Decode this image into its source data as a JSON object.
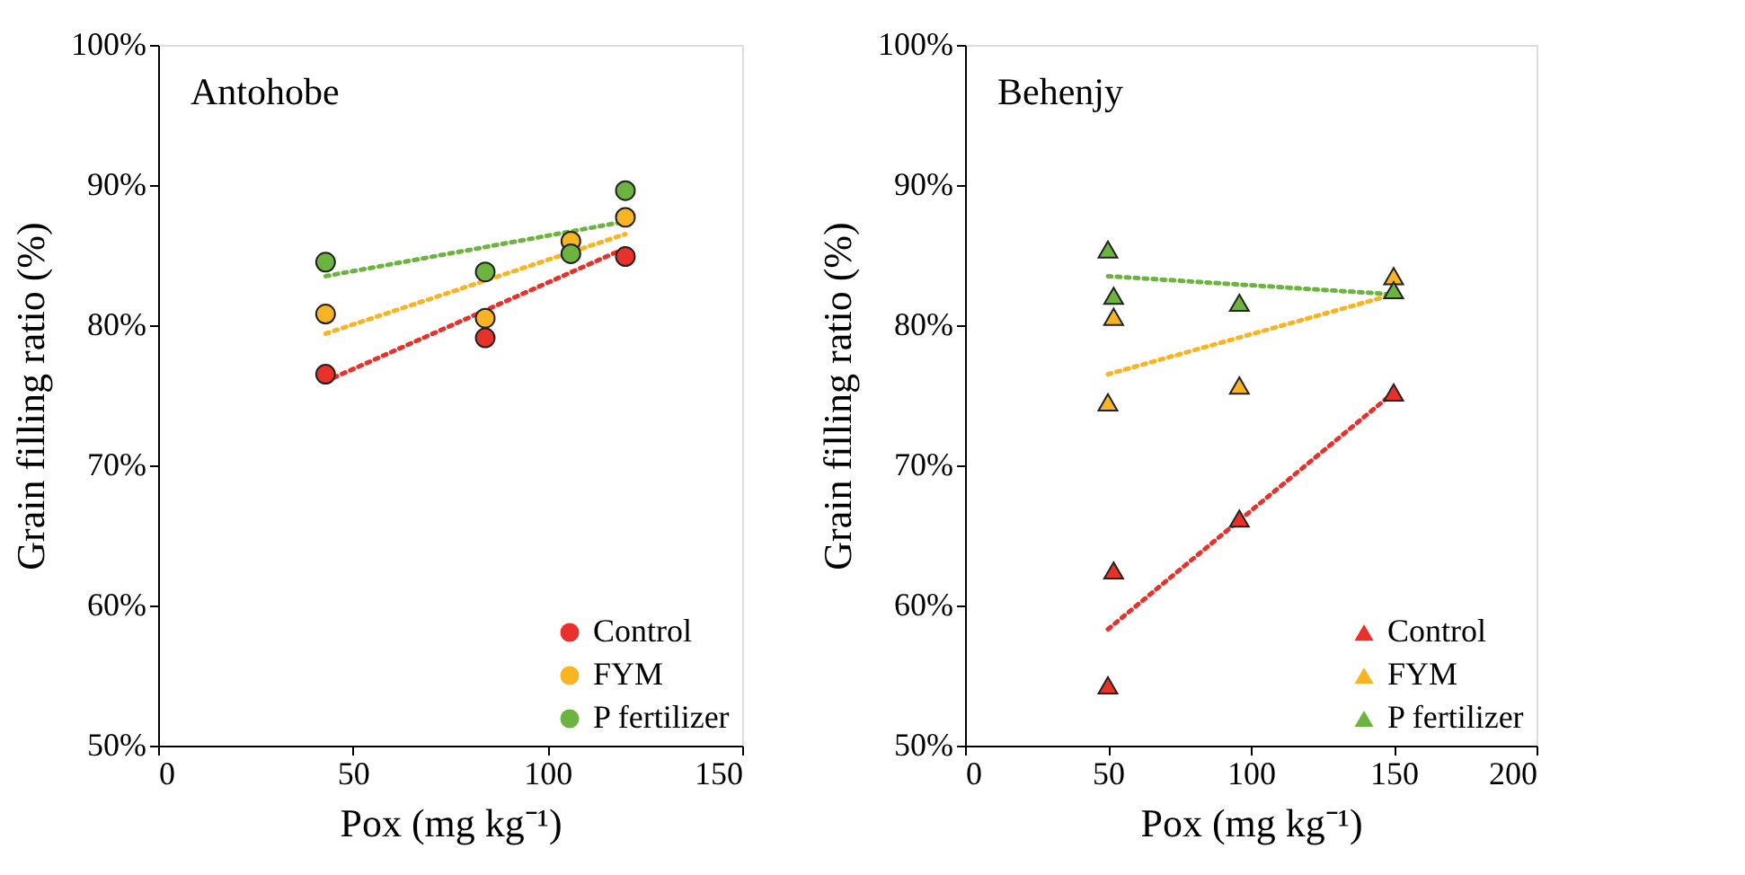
{
  "chart_data": [
    {
      "type": "scatter",
      "title": "Antohobe",
      "xlabel": "Pox (mg kg⁻¹)",
      "ylabel": "Grain filling ratio (%)",
      "xlim": [
        0,
        150
      ],
      "xticks": [
        0,
        50,
        100,
        150
      ],
      "ylim": [
        50,
        100
      ],
      "yticks": [
        {
          "value": 50,
          "label": "50%"
        },
        {
          "value": 60,
          "label": "60%"
        },
        {
          "value": 70,
          "label": "70%"
        },
        {
          "value": 80,
          "label": "80%"
        },
        {
          "value": 90,
          "label": "90%"
        },
        {
          "value": 100,
          "label": "100%"
        }
      ],
      "grid": false,
      "legend": "bottom right",
      "marker": "circle",
      "series": [
        {
          "name": "Control",
          "color": "#e8312a",
          "x": [
            43,
            84,
            106,
            120
          ],
          "values": [
            76.5,
            79.1,
            null,
            84.9
          ]
        },
        {
          "name": "FYM",
          "color": "#f9b423",
          "x": [
            43,
            84,
            106,
            120
          ],
          "values": [
            80.8,
            80.5,
            86.0,
            87.7
          ]
        },
        {
          "name": "P fertilizer",
          "color": "#6db33f",
          "x": [
            43,
            84,
            106,
            120
          ],
          "values": [
            84.5,
            83.8,
            85.1,
            89.6
          ]
        },
        {
          "type": "line",
          "color": "#e8312a",
          "x": [
            43,
            120
          ],
          "values": [
            76.0,
            85.5
          ],
          "line_style": "dotted",
          "marker": "none"
        },
        {
          "type": "line",
          "color": "#f9b423",
          "x": [
            43,
            120
          ],
          "values": [
            79.4,
            86.5
          ],
          "line_style": "dotted",
          "marker": "none"
        },
        {
          "type": "line",
          "color": "#6db33f",
          "x": [
            43,
            120
          ],
          "values": [
            83.5,
            87.4
          ],
          "line_style": "dotted",
          "marker": "none"
        }
      ]
    },
    {
      "type": "scatter",
      "title": "Behenjy",
      "xlabel": "Pox (mg kg⁻¹)",
      "ylabel": "Grain filling ratio (%)",
      "xlim": [
        0,
        200
      ],
      "xticks": [
        0,
        50,
        100,
        150,
        200
      ],
      "ylim": [
        50,
        100
      ],
      "yticks": [
        {
          "value": 50,
          "label": "50%"
        },
        {
          "value": 60,
          "label": "60%"
        },
        {
          "value": 70,
          "label": "70%"
        },
        {
          "value": 80,
          "label": "80%"
        },
        {
          "value": 90,
          "label": "90%"
        },
        {
          "value": 100,
          "label": "100%"
        }
      ],
      "grid": false,
      "legend": "bottom right",
      "marker": "triangle",
      "series": [
        {
          "name": "Control",
          "color": "#e8312a",
          "x": [
            50,
            52,
            96,
            150
          ],
          "values": [
            54.3,
            62.5,
            66.2,
            75.2
          ]
        },
        {
          "name": "FYM",
          "color": "#f9b423",
          "x": [
            50,
            52,
            96,
            150
          ],
          "values": [
            74.5,
            80.6,
            75.7,
            83.5
          ]
        },
        {
          "name": "P fertilizer",
          "color": "#6db33f",
          "x": [
            50,
            52,
            96,
            150
          ],
          "values": [
            85.4,
            82.1,
            81.6,
            82.5
          ]
        },
        {
          "type": "line",
          "color": "#e8312a",
          "x": [
            50,
            150
          ],
          "values": [
            58.3,
            75.2
          ],
          "line_style": "dotted",
          "marker": "none"
        },
        {
          "type": "line",
          "color": "#f9b423",
          "x": [
            50,
            150
          ],
          "values": [
            76.5,
            82.2
          ],
          "line_style": "dotted",
          "marker": "none"
        },
        {
          "type": "line",
          "color": "#6db33f",
          "x": [
            50,
            150
          ],
          "values": [
            83.5,
            82.2
          ],
          "line_style": "dotted",
          "marker": "none"
        }
      ]
    }
  ]
}
